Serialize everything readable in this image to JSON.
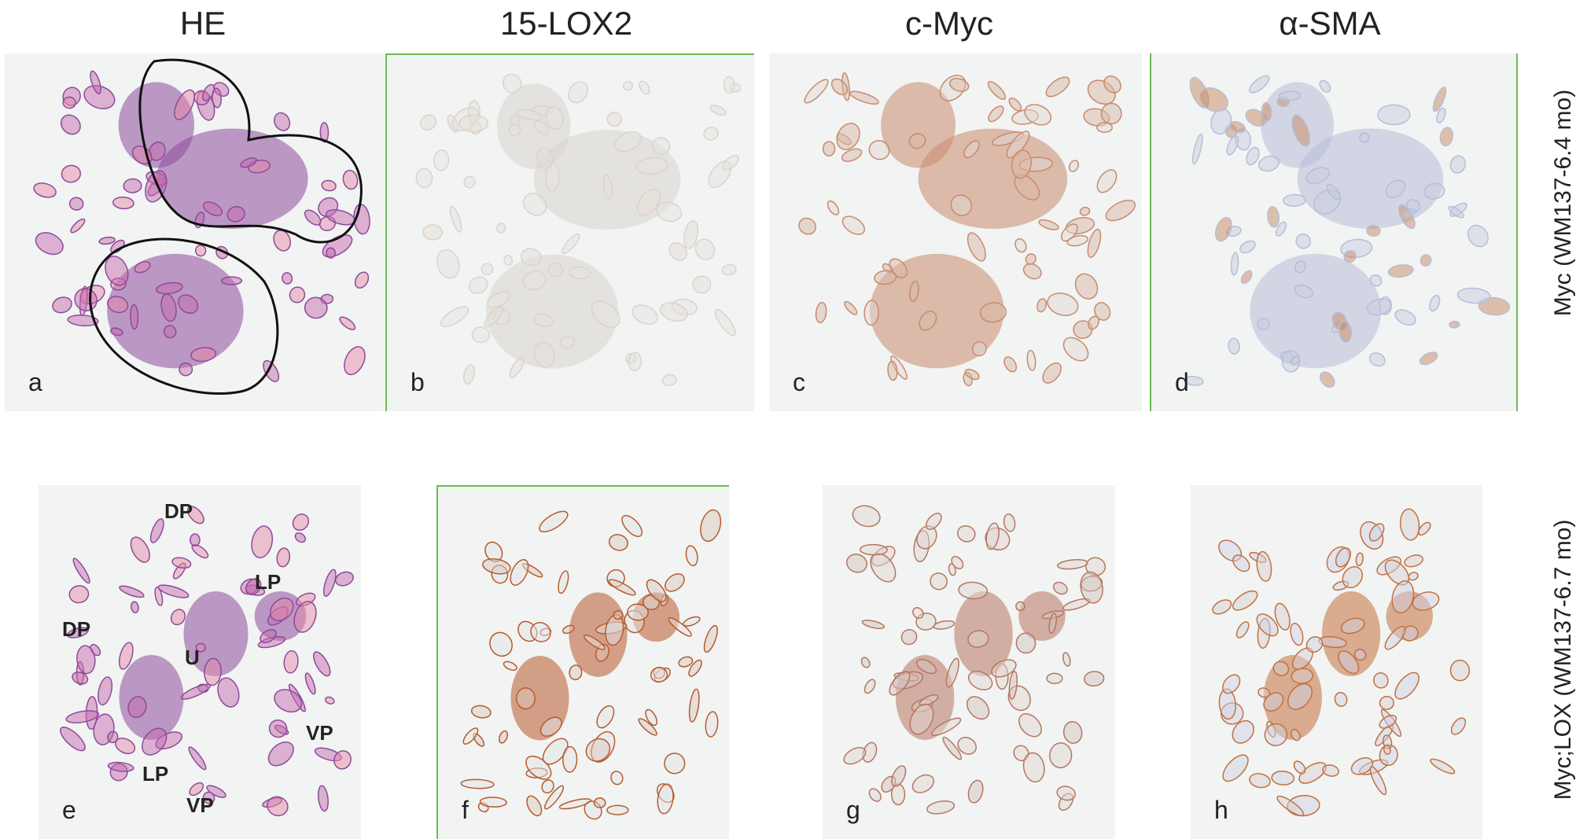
{
  "headers": [
    "HE",
    "15-LOX2",
    "c-Myc",
    "α-SMA"
  ],
  "row_labels": [
    "Myc (WM137-6.4 mo)",
    "Myc;LOX (WM137-6.7 mo)"
  ],
  "panels": [
    {
      "letter": "a"
    },
    {
      "letter": "b"
    },
    {
      "letter": "c"
    },
    {
      "letter": "d"
    },
    {
      "letter": "e",
      "regions": [
        "DP",
        "LP",
        "DP",
        "U",
        "VP",
        "LP",
        "VP"
      ]
    },
    {
      "letter": "f"
    },
    {
      "letter": "g"
    },
    {
      "letter": "h"
    }
  ]
}
